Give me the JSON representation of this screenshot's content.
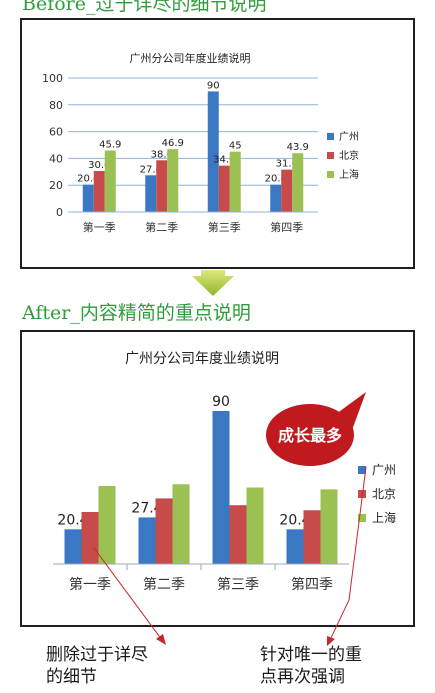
{
  "headings": {
    "before": "Before_过于详尽的细节说明",
    "after": "After_内容精简的重点说明"
  },
  "chart_data": [
    {
      "type": "bar",
      "title": "广州分公司年度业绩说明",
      "categories": [
        "第一季",
        "第二季",
        "第三季",
        "第四季"
      ],
      "series": [
        {
          "name": "广州",
          "values": [
            20.4,
            27.4,
            90,
            20.4
          ],
          "color": "#3a78c3"
        },
        {
          "name": "北京",
          "values": [
            30.6,
            38.6,
            34.6,
            31.6
          ],
          "color": "#c84b4b"
        },
        {
          "name": "上海",
          "values": [
            45.9,
            46.9,
            45,
            43.9
          ],
          "color": "#9ac152"
        }
      ],
      "ylim": [
        0,
        100
      ],
      "yticks": [
        "0",
        "20",
        "40",
        "60",
        "80",
        "100"
      ],
      "grid": true,
      "legend": "right",
      "data_labels": "all"
    },
    {
      "type": "bar",
      "title": "广州分公司年度业绩说明",
      "categories": [
        "第一季",
        "第二季",
        "第三季",
        "第四季"
      ],
      "series": [
        {
          "name": "广州",
          "values": [
            20.4,
            27.4,
            90,
            20.4
          ],
          "color": "#3a78c3"
        },
        {
          "name": "北京",
          "values": [
            30.6,
            38.6,
            34.6,
            31.6
          ],
          "color": "#c84b4b"
        },
        {
          "name": "上海",
          "values": [
            45.9,
            46.9,
            45,
            43.9
          ],
          "color": "#9ac152"
        }
      ],
      "ylim": [
        0,
        100
      ],
      "grid": false,
      "legend": "right",
      "data_labels": "first-series-only",
      "callout": "成长最多",
      "callout_color": "#c0191e"
    }
  ],
  "notes": {
    "left_line1": "删除过于详尽",
    "left_line2": "的细节",
    "right_line1": "针对唯一的重",
    "right_line2": "点再次强调"
  }
}
